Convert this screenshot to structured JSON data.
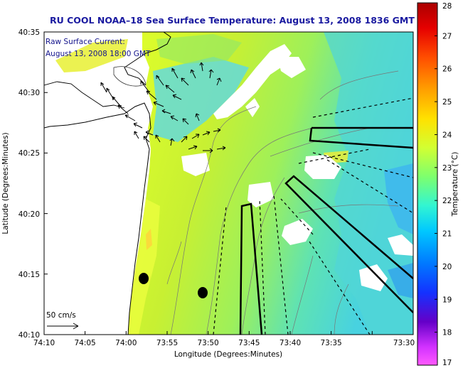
{
  "title": "RU COOL  NOAA–18  Sea Surface Temperature:  August 13, 2008 1836 GMT",
  "overlay": {
    "current_label": "Raw Surface Current:",
    "current_time": "August 13, 2008 18:00 GMT",
    "scale_label": "50 cm/s"
  },
  "axes": {
    "xlabel": "Longitude (Degrees:Minutes)",
    "ylabel": "Latitude (Degrees:Minutes)",
    "xticks": [
      "74:10",
      "74:05",
      "74:00",
      "73:55",
      "73:50",
      "73:45",
      "73:40",
      "73:35",
      "73:30"
    ],
    "yticks": [
      "40:35",
      "40:30",
      "40:25",
      "40:20",
      "40:15",
      "40:10"
    ]
  },
  "colorbar": {
    "label": "Temperature (°C)",
    "min": 17,
    "max": 28,
    "ticks": [
      "28",
      "27",
      "26",
      "25",
      "24",
      "23",
      "22",
      "21",
      "20",
      "19",
      "18",
      "17"
    ],
    "colors": [
      "#cc0000",
      "#ff3300",
      "#ff8800",
      "#ffcc00",
      "#ffff33",
      "#ccff33",
      "#88ff66",
      "#33ffcc",
      "#00ccff",
      "#0088ff",
      "#1133ff",
      "#5500cc",
      "#cc33ff",
      "#ff66ff"
    ]
  },
  "colors": {
    "title": "#1a1aa0",
    "land": "#ffffff",
    "ocean_main": "#c8f032",
    "ocean_offshore": "#52dcd2",
    "ocean_cool": "#3cb4f0"
  }
}
